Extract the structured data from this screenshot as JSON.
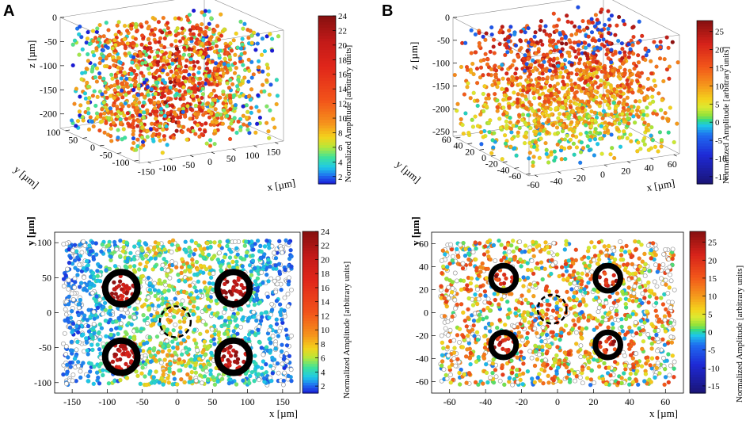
{
  "panel_labels": [
    "A",
    "B"
  ],
  "colorbar_label": "Normalized Amplitude [arbitrary units]",
  "chart_data": [
    {
      "id": "A-3d",
      "type": "scatter",
      "title": "",
      "xlabel": "x [µm]",
      "ylabel": "y [µm]",
      "zlabel": "z [µm]",
      "xticks": [
        "-150",
        "-100",
        "-50",
        "0",
        "50",
        "100",
        "150"
      ],
      "yticks": [
        "100",
        "50",
        "0",
        "-50",
        "-100"
      ],
      "zticks": [
        "0",
        "-50",
        "-100",
        "-150",
        "-200"
      ],
      "xlim": [
        -170,
        170
      ],
      "ylim": [
        -115,
        115
      ],
      "zlim": [
        -230,
        0
      ],
      "colorbar": {
        "label": "Normalized Amplitude [arbitrary units]",
        "range": [
          1,
          24
        ],
        "ticks": [
          "24",
          "22",
          "20",
          "18",
          "16",
          "14",
          "12",
          "10",
          "8",
          "6",
          "4",
          "2"
        ],
        "scheme": "rainbow"
      },
      "n_points": 1400
    },
    {
      "id": "B-3d",
      "type": "scatter",
      "title": "",
      "xlabel": "x [µm]",
      "ylabel": "y [µm]",
      "zlabel": "z [µm]",
      "xticks": [
        "-60",
        "-40",
        "-20",
        "0",
        "20",
        "40",
        "60"
      ],
      "yticks": [
        "60",
        "40",
        "20",
        "0",
        "-20",
        "-40",
        "-60"
      ],
      "zticks": [
        "0",
        "-50",
        "-100",
        "-150",
        "-200",
        "-250"
      ],
      "xlim": [
        -65,
        65
      ],
      "ylim": [
        -65,
        65
      ],
      "zlim": [
        -260,
        0
      ],
      "colorbar": {
        "label": "Normalized Amplitude [arbitrary units]",
        "range": [
          -17,
          28
        ],
        "ticks": [
          "25",
          "20",
          "15",
          "10",
          "5",
          "0",
          "-5",
          "-10",
          "-15"
        ],
        "scheme": "diverging"
      },
      "n_points": 1400
    },
    {
      "id": "A-2d",
      "type": "scatter",
      "title": "",
      "xlabel": "x [µm]",
      "ylabel": "y [µm]",
      "xticks": [
        "-150",
        "-100",
        "-50",
        "0",
        "50",
        "100",
        "150"
      ],
      "yticks": [
        "100",
        "50",
        "0",
        "-50",
        "-100"
      ],
      "xlim": [
        -175,
        175
      ],
      "ylim": [
        -115,
        115
      ],
      "rings_solid": [
        {
          "x": -80,
          "y": 35,
          "r": 23
        },
        {
          "x": 80,
          "y": 35,
          "r": 23
        },
        {
          "x": -80,
          "y": -63,
          "r": 23
        },
        {
          "x": 80,
          "y": -63,
          "r": 23
        }
      ],
      "rings_dashed": [
        {
          "x": -3,
          "y": -13,
          "r": 22
        }
      ],
      "colorbar": {
        "label": "Normalized Amplitude [arbitrary units]",
        "range": [
          1,
          24
        ],
        "ticks": [
          "24",
          "22",
          "20",
          "18",
          "16",
          "14",
          "12",
          "10",
          "8",
          "6",
          "4",
          "2"
        ],
        "scheme": "rainbow"
      },
      "n_points": 1800
    },
    {
      "id": "B-2d",
      "type": "scatter",
      "title": "",
      "xlabel": "x [µm]",
      "ylabel": "y [µm]",
      "xticks": [
        "-60",
        "-40",
        "-20",
        "0",
        "20",
        "40",
        "60"
      ],
      "yticks": [
        "60",
        "40",
        "20",
        "0",
        "-20",
        "-40",
        "-60"
      ],
      "xlim": [
        -70,
        70
      ],
      "ylim": [
        -70,
        70
      ],
      "rings_solid": [
        {
          "x": -30,
          "y": 30,
          "r": 7
        },
        {
          "x": 28,
          "y": 30,
          "r": 7
        },
        {
          "x": -30,
          "y": -28,
          "r": 7
        },
        {
          "x": 28,
          "y": -28,
          "r": 7
        }
      ],
      "rings_dashed": [
        {
          "x": -3,
          "y": 3,
          "r": 8
        }
      ],
      "colorbar": {
        "label": "Normalized Amplitude [arbitrary units]",
        "range": [
          -17,
          28
        ],
        "ticks": [
          "25",
          "20",
          "15",
          "10",
          "5",
          "0",
          "-5",
          "-10",
          "-15"
        ],
        "scheme": "diverging"
      },
      "n_points": 1500
    }
  ]
}
